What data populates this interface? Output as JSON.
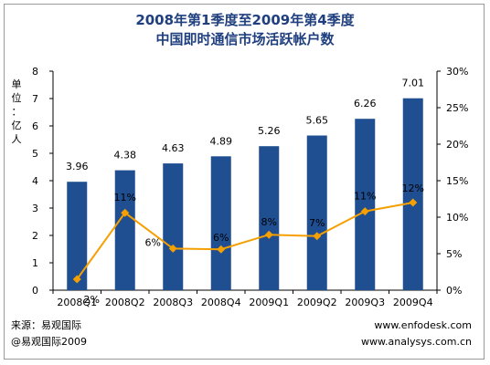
{
  "title_line1": "2008年第1季度至2009年第4季度",
  "title_line2": "中国即时通信市场活跃帐户数",
  "footer": {
    "source": "来源：易观国际",
    "copyright": "@易观国际2009",
    "url1": "www.enfodesk.com",
    "url2": "www.analysys.com.cn"
  },
  "colors": {
    "bar": "#1f4e91",
    "line": "#f5a000",
    "title": "#1f3f7f"
  },
  "chart_data": {
    "type": "bar",
    "categories": [
      "2008Q1",
      "2008Q2",
      "2008Q3",
      "2008Q4",
      "2009Q1",
      "2009Q2",
      "2009Q3",
      "2009Q4"
    ],
    "series": [
      {
        "type": "bar",
        "axis": "left",
        "values": [
          3.96,
          4.38,
          4.63,
          4.89,
          5.26,
          5.65,
          6.26,
          7.01
        ],
        "labels": [
          "3.96",
          "4.38",
          "4.63",
          "4.89",
          "5.26",
          "5.65",
          "6.26",
          "7.01"
        ]
      },
      {
        "type": "line",
        "axis": "right",
        "values": [
          1.5,
          10.6,
          5.7,
          5.6,
          7.6,
          7.4,
          10.8,
          12.0
        ],
        "labels": [
          "2%",
          "11%",
          "6%",
          "6%",
          "8%",
          "7%",
          "11%",
          "12%"
        ]
      }
    ],
    "ylabel": "单位：亿人",
    "ylim": [
      0,
      8
    ],
    "y_ticks": [
      "0",
      "1",
      "2",
      "3",
      "4",
      "5",
      "6",
      "7",
      "8"
    ],
    "y2lim": [
      0,
      30
    ],
    "y2_ticks": [
      "0%",
      "5%",
      "10%",
      "15%",
      "20%",
      "25%",
      "30%"
    ],
    "grid": false,
    "legend": "none"
  }
}
